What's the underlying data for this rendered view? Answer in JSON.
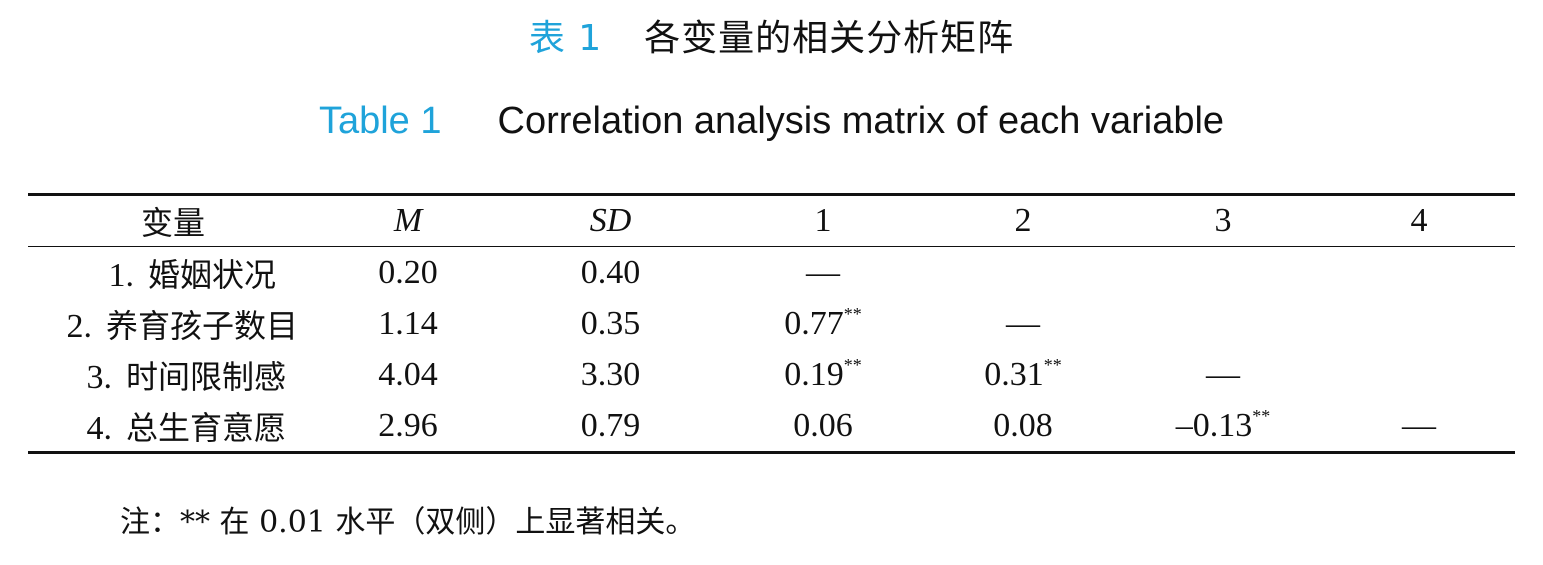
{
  "title_cn": {
    "label": "表 1",
    "text": "各变量的相关分析矩阵"
  },
  "title_en": {
    "label": "Table 1",
    "text": "Correlation analysis matrix of each variable"
  },
  "table": {
    "headers": [
      "变量",
      "M",
      "SD",
      "1",
      "2",
      "3",
      "4"
    ],
    "rows": [
      {
        "num": "1.",
        "name": "婚姻状况",
        "m": "0.20",
        "sd": "0.40",
        "c1": "—",
        "c1s": "",
        "c2": "",
        "c2s": "",
        "c3": "",
        "c3s": "",
        "c4": ""
      },
      {
        "num": "2.",
        "name": "养育孩子数目",
        "m": "1.14",
        "sd": "0.35",
        "c1": "0.77",
        "c1s": "**",
        "c2": "—",
        "c2s": "",
        "c3": "",
        "c3s": "",
        "c4": ""
      },
      {
        "num": "3.",
        "name": "时间限制感",
        "m": "4.04",
        "sd": "3.30",
        "c1": "0.19",
        "c1s": "**",
        "c2": "0.31",
        "c2s": "**",
        "c3": "—",
        "c3s": "",
        "c4": ""
      },
      {
        "num": "4.",
        "name": "总生育意愿",
        "m": "2.96",
        "sd": "0.79",
        "c1": "0.06",
        "c1s": "",
        "c2": "0.08",
        "c2s": "",
        "c3": "–0.13",
        "c3s": "**",
        "c4": "—"
      }
    ]
  },
  "note": "注：** 在 0.01 水平（双侧）上显著相关。"
}
